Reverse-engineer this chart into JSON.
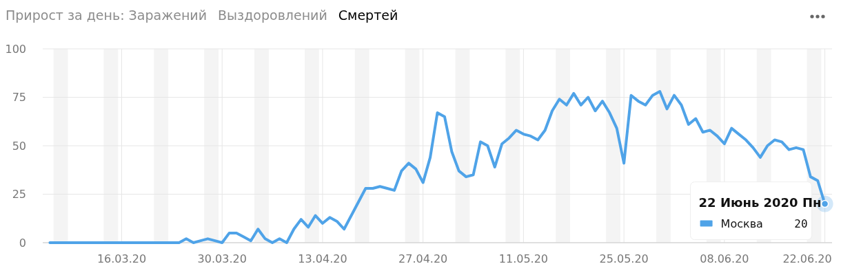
{
  "chart_data": {
    "type": "line",
    "title": "Прирост за день: Заражений",
    "annotations": [
      "Выздоровлений",
      "Смертей",
      {
        "text": "22 Июнь 2020 Пн",
        "x": "2020-06-22",
        "y": 20
      }
    ],
    "x": [
      "2020-03-06",
      "2020-03-07",
      "2020-03-08",
      "2020-03-09",
      "2020-03-10",
      "2020-03-11",
      "2020-03-12",
      "2020-03-13",
      "2020-03-14",
      "2020-03-15",
      "2020-03-16",
      "2020-03-17",
      "2020-03-18",
      "2020-03-19",
      "2020-03-20",
      "2020-03-21",
      "2020-03-22",
      "2020-03-23",
      "2020-03-24",
      "2020-03-25",
      "2020-03-26",
      "2020-03-27",
      "2020-03-28",
      "2020-03-29",
      "2020-03-30",
      "2020-03-31",
      "2020-04-01",
      "2020-04-02",
      "2020-04-03",
      "2020-04-04",
      "2020-04-05",
      "2020-04-06",
      "2020-04-07",
      "2020-04-08",
      "2020-04-09",
      "2020-04-10",
      "2020-04-11",
      "2020-04-12",
      "2020-04-13",
      "2020-04-14",
      "2020-04-15",
      "2020-04-16",
      "2020-04-17",
      "2020-04-18",
      "2020-04-19",
      "2020-04-20",
      "2020-04-21",
      "2020-04-22",
      "2020-04-23",
      "2020-04-24",
      "2020-04-25",
      "2020-04-26",
      "2020-04-27",
      "2020-04-28",
      "2020-04-29",
      "2020-04-30",
      "2020-05-01",
      "2020-05-02",
      "2020-05-03",
      "2020-05-04",
      "2020-05-05",
      "2020-05-06",
      "2020-05-07",
      "2020-05-08",
      "2020-05-09",
      "2020-05-10",
      "2020-05-11",
      "2020-05-12",
      "2020-05-13",
      "2020-05-14",
      "2020-05-15",
      "2020-05-16",
      "2020-05-17",
      "2020-05-18",
      "2020-05-19",
      "2020-05-20",
      "2020-05-21",
      "2020-05-22",
      "2020-05-23",
      "2020-05-24",
      "2020-05-25",
      "2020-05-26",
      "2020-05-27",
      "2020-05-28",
      "2020-05-29",
      "2020-05-30",
      "2020-05-31",
      "2020-06-01",
      "2020-06-02",
      "2020-06-03",
      "2020-06-04",
      "2020-06-05",
      "2020-06-06",
      "2020-06-07",
      "2020-06-08",
      "2020-06-09",
      "2020-06-10",
      "2020-06-11",
      "2020-06-12",
      "2020-06-13",
      "2020-06-14",
      "2020-06-15",
      "2020-06-16",
      "2020-06-17",
      "2020-06-18",
      "2020-06-19",
      "2020-06-20",
      "2020-06-21",
      "2020-06-22"
    ],
    "series": [
      {
        "name": "Москва",
        "color": "#4fa3e8",
        "values": [
          0,
          0,
          0,
          0,
          0,
          0,
          0,
          0,
          0,
          0,
          0,
          0,
          0,
          0,
          0,
          0,
          0,
          0,
          0,
          2,
          0,
          1,
          2,
          1,
          0,
          5,
          5,
          3,
          1,
          7,
          2,
          0,
          2,
          0,
          7,
          12,
          8,
          14,
          10,
          13,
          11,
          7,
          14,
          21,
          28,
          28,
          29,
          28,
          27,
          37,
          41,
          38,
          31,
          44,
          67,
          65,
          47,
          37,
          34,
          35,
          52,
          50,
          39,
          51,
          54,
          58,
          56,
          55,
          53,
          58,
          68,
          74,
          71,
          77,
          71,
          75,
          68,
          73,
          67,
          59,
          41,
          76,
          73,
          71,
          76,
          78,
          69,
          76,
          71,
          61,
          64,
          57,
          58,
          55,
          51,
          59,
          56,
          53,
          49,
          44,
          50,
          53,
          52,
          48,
          49,
          48,
          34,
          32,
          20
        ],
        "value_labels": [
          null,
          null,
          null,
          null,
          null,
          null,
          null,
          null,
          null,
          null,
          null,
          null,
          null,
          null,
          null,
          null,
          null,
          null,
          null,
          null,
          null,
          null,
          null,
          null,
          null,
          null,
          null,
          null,
          null,
          null,
          null,
          null,
          null,
          null,
          null,
          null,
          null,
          null,
          null,
          null,
          null,
          null,
          null,
          null,
          null,
          null,
          null,
          null,
          null,
          null,
          null,
          null,
          null,
          null,
          null,
          null,
          null,
          null,
          null,
          null,
          null,
          null,
          null,
          null,
          null,
          null,
          null,
          null,
          null,
          null,
          null,
          null,
          null,
          null,
          null,
          null,
          null,
          null,
          null,
          null,
          null,
          null,
          null,
          null,
          null,
          null,
          null,
          null,
          null,
          null,
          null,
          null,
          null,
          null,
          null,
          null,
          null,
          null,
          null,
          null,
          null,
          null,
          null,
          null,
          null,
          null,
          null,
          null,
          "20"
        ]
      }
    ],
    "xlim": [
      "2020-03-05",
      "2020-06-23"
    ],
    "xticks": [
      {
        "value": "2020-03-16",
        "label": "16.03.20"
      },
      {
        "value": "2020-03-30",
        "label": "30.03.20"
      },
      {
        "value": "2020-04-13",
        "label": "13.04.20"
      },
      {
        "value": "2020-04-27",
        "label": "27.04.20"
      },
      {
        "value": "2020-05-11",
        "label": "11.05.20"
      },
      {
        "value": "2020-05-25",
        "label": "25.05.20"
      },
      {
        "value": "2020-06-08",
        "label": "08.06.20"
      },
      {
        "value": "2020-06-22",
        "label": "22.06.20"
      }
    ],
    "ylim": [
      0,
      100
    ],
    "yticks": [
      0,
      25,
      50,
      75,
      100
    ],
    "bands": [
      {
        "axis": "x",
        "from": "2020-03-06T12:00",
        "to": "2020-03-08T12:00",
        "color": "#f4f4f4"
      },
      {
        "axis": "x",
        "from": "2020-03-13T12:00",
        "to": "2020-03-15T12:00",
        "color": "#f4f4f4"
      },
      {
        "axis": "x",
        "from": "2020-03-20T12:00",
        "to": "2020-03-22T12:00",
        "color": "#f4f4f4"
      },
      {
        "axis": "x",
        "from": "2020-03-27T12:00",
        "to": "2020-03-29T12:00",
        "color": "#f4f4f4"
      },
      {
        "axis": "x",
        "from": "2020-04-03T12:00",
        "to": "2020-04-05T12:00",
        "color": "#f4f4f4"
      },
      {
        "axis": "x",
        "from": "2020-04-10T12:00",
        "to": "2020-04-12T12:00",
        "color": "#f4f4f4"
      },
      {
        "axis": "x",
        "from": "2020-04-17T12:00",
        "to": "2020-04-19T12:00",
        "color": "#f4f4f4"
      },
      {
        "axis": "x",
        "from": "2020-04-24T12:00",
        "to": "2020-04-26T12:00",
        "color": "#f4f4f4"
      },
      {
        "axis": "x",
        "from": "2020-05-01T12:00",
        "to": "2020-05-03T12:00",
        "color": "#f4f4f4"
      },
      {
        "axis": "x",
        "from": "2020-05-08T12:00",
        "to": "2020-05-10T12:00",
        "color": "#f4f4f4"
      },
      {
        "axis": "x",
        "from": "2020-05-15T12:00",
        "to": "2020-05-17T12:00",
        "color": "#f4f4f4"
      },
      {
        "axis": "x",
        "from": "2020-05-22T12:00",
        "to": "2020-05-24T12:00",
        "color": "#f4f4f4"
      },
      {
        "axis": "x",
        "from": "2020-05-29T12:00",
        "to": "2020-05-31T12:00",
        "color": "#f4f4f4"
      },
      {
        "axis": "x",
        "from": "2020-06-05T12:00",
        "to": "2020-06-07T12:00",
        "color": "#f4f4f4"
      },
      {
        "axis": "x",
        "from": "2020-06-12T12:00",
        "to": "2020-06-14T12:00",
        "color": "#f4f4f4"
      },
      {
        "axis": "x",
        "from": "2020-06-19T12:00",
        "to": "2020-06-21T12:00",
        "color": "#f4f4f4"
      }
    ],
    "grid": true,
    "legend": "bottom right",
    "marker": "none",
    "line_style": "solid"
  }
}
